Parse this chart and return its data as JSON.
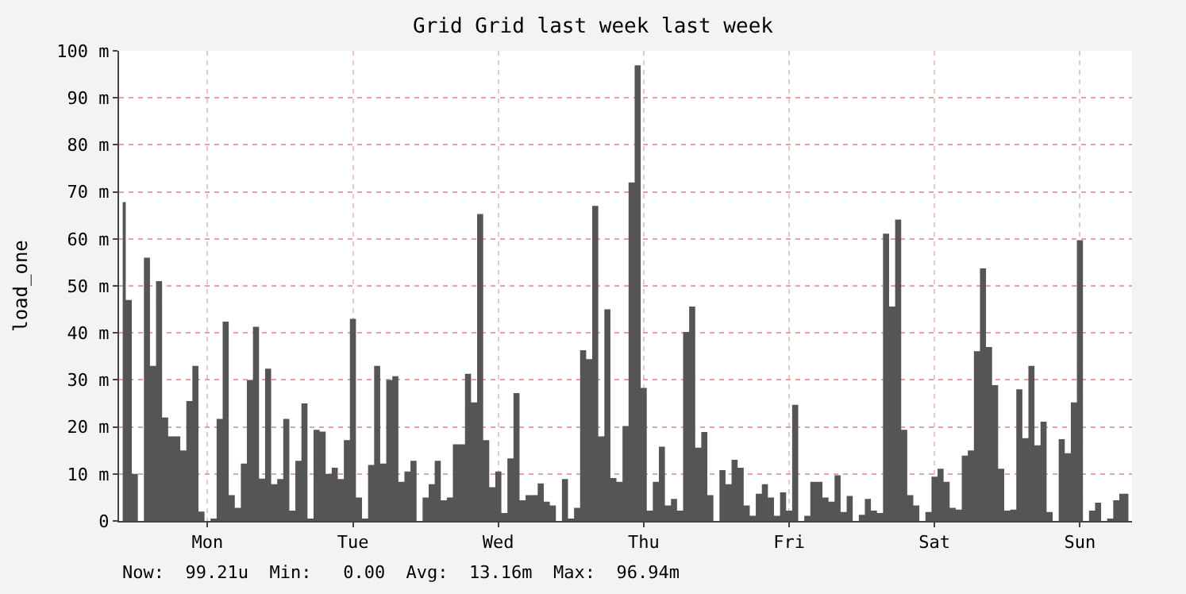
{
  "chart_data": {
    "type": "area",
    "title": "Grid Grid last week last week",
    "ylabel": "load_one",
    "color": "#555555",
    "grid": true,
    "annotations": [
      "Now:  99.21u  Min:   0.00  Avg:  13.16m  Max:  96.94m"
    ],
    "ylim": [
      0,
      100
    ],
    "yticks": [
      0,
      {
        "value": 10,
        "label": "10 m"
      },
      {
        "value": 20,
        "label": "20 m"
      },
      {
        "value": 30,
        "label": "30 m"
      },
      {
        "value": 40,
        "label": "40 m"
      },
      {
        "value": 50,
        "label": "50 m"
      },
      {
        "value": 60,
        "label": "60 m"
      },
      {
        "value": 70,
        "label": "70 m"
      },
      {
        "value": 80,
        "label": "80 m"
      },
      {
        "value": 90,
        "label": "90 m"
      },
      {
        "value": 100,
        "label": "100 m"
      }
    ],
    "categories": [
      null,
      null,
      null,
      null,
      null,
      null,
      null,
      null,
      null,
      null,
      null,
      null,
      null,
      null,
      "Mon",
      null,
      null,
      null,
      null,
      null,
      null,
      null,
      null,
      null,
      null,
      null,
      null,
      null,
      null,
      null,
      null,
      null,
      null,
      null,
      null,
      null,
      null,
      null,
      "Tue",
      null,
      null,
      null,
      null,
      null,
      null,
      null,
      null,
      null,
      null,
      null,
      null,
      null,
      null,
      null,
      null,
      null,
      null,
      null,
      null,
      null,
      null,
      null,
      "Wed",
      null,
      null,
      null,
      null,
      null,
      null,
      null,
      null,
      null,
      null,
      null,
      null,
      null,
      null,
      null,
      null,
      null,
      null,
      null,
      null,
      null,
      null,
      null,
      "Thu",
      null,
      null,
      null,
      null,
      null,
      null,
      null,
      null,
      null,
      null,
      null,
      null,
      null,
      null,
      null,
      null,
      null,
      null,
      null,
      null,
      null,
      null,
      null,
      "Fri",
      null,
      null,
      null,
      null,
      null,
      null,
      null,
      null,
      null,
      null,
      null,
      null,
      null,
      null,
      null,
      null,
      null,
      null,
      null,
      null,
      null,
      null,
      null,
      "Sat",
      null,
      null,
      null,
      null,
      null,
      null,
      null,
      null,
      null,
      null,
      null,
      null,
      null,
      null,
      null,
      null,
      null,
      null,
      null,
      null,
      null,
      null,
      null,
      "Sun",
      null,
      null,
      null,
      null,
      null,
      null,
      null,
      null
    ],
    "values": [
      67.8,
      47,
      10,
      0,
      56,
      33,
      51,
      22,
      18,
      18,
      15,
      25.5,
      33,
      2,
      0,
      0.5,
      21.7,
      42.4,
      5.5,
      2.8,
      12.2,
      30,
      41.3,
      9,
      32.4,
      7.8,
      8.9,
      21.7,
      2.2,
      12.8,
      25,
      0.5,
      19.4,
      19,
      10,
      11.3,
      8.9,
      17.2,
      43,
      5,
      0.5,
      11.9,
      33,
      12.2,
      30,
      30.8,
      8.3,
      10.5,
      12.8,
      0,
      5,
      7.8,
      12.8,
      4.4,
      5,
      16.3,
      16.3,
      31.3,
      25.2,
      65.3,
      17.2,
      7.2,
      10.5,
      1.7,
      13.3,
      27.2,
      4.4,
      5.5,
      5.5,
      8,
      4.1,
      3.3,
      0,
      8.9,
      0.5,
      2.8,
      36.3,
      34.4,
      67,
      18,
      45,
      9.1,
      8.3,
      20.2,
      72,
      96.9,
      28.3,
      2.2,
      8.3,
      15.8,
      3.3,
      4.7,
      2.2,
      40.2,
      45.6,
      15.6,
      18.9,
      5.5,
      0,
      10.8,
      7.8,
      13,
      11.3,
      3.3,
      1.1,
      5.8,
      7.8,
      5,
      1.1,
      6.1,
      2.2,
      24.7,
      0,
      1.1,
      8.3,
      8.3,
      5,
      4.1,
      9.7,
      1.9,
      5.3,
      0,
      1.3,
      4.7,
      2.2,
      1.7,
      61.1,
      45.6,
      64.1,
      19.4,
      5.5,
      3.3,
      0,
      1.9,
      9.4,
      11.1,
      8.3,
      2.8,
      2.4,
      13.9,
      15,
      36.1,
      53.7,
      37,
      28.9,
      11.1,
      2.2,
      2.4,
      28,
      17.6,
      33,
      16.1,
      21.1,
      1.9,
      0,
      17.4,
      14.4,
      25.2,
      59.7,
      0,
      2.2,
      3.9,
      0,
      0.5,
      4.4,
      5.8,
      5.8
    ]
  }
}
